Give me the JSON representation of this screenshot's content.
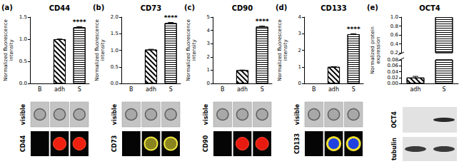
{
  "chart_data": [
    {
      "type": "bar",
      "panel": "(a)",
      "title": "CD44",
      "ylabel": "Normalized fluorescence intensity",
      "categories": [
        "B",
        "adh",
        "S"
      ],
      "values": [
        null,
        1.0,
        1.27
      ],
      "errors": [
        null,
        0.005,
        0.015
      ],
      "color": "#000000",
      "ylim": [
        0,
        1.5
      ],
      "yticks": [
        {
          "value": 0,
          "label": "0.0"
        },
        0.5,
        {
          "value": 1,
          "label": "1.0"
        },
        1.5
      ],
      "grid": false,
      "annotations": [
        {
          "category": "S",
          "text": "****"
        }
      ],
      "image_rows": [
        "visible",
        "CD44"
      ]
    },
    {
      "type": "bar",
      "panel": "(b)",
      "title": "CD73",
      "ylabel": "Normalized fluorescence intensity",
      "categories": [
        "B",
        "adh",
        "S"
      ],
      "values": [
        null,
        1.02,
        1.82
      ],
      "errors": [
        null,
        0.01,
        0.02
      ],
      "color": "#000000",
      "ylim": [
        0,
        2.0
      ],
      "yticks": [
        {
          "value": 0,
          "label": "0.0"
        },
        0.5,
        {
          "value": 1,
          "label": "1.0"
        },
        1.5,
        {
          "value": 2,
          "label": "2.0"
        }
      ],
      "grid": false,
      "annotations": [
        {
          "category": "S",
          "text": "****"
        }
      ],
      "image_rows": [
        "visible",
        "CD73"
      ]
    },
    {
      "type": "bar",
      "panel": "(c)",
      "title": "CD90",
      "ylabel": "Normalized fluorescence intensity",
      "categories": [
        "B",
        "adh",
        "S"
      ],
      "values": [
        null,
        1.0,
        4.28
      ],
      "errors": [
        null,
        0.01,
        0.04
      ],
      "color": "#000000",
      "ylim": [
        0,
        5
      ],
      "yticks": [
        0,
        1,
        2,
        3,
        4,
        5
      ],
      "grid": false,
      "annotations": [
        {
          "category": "S",
          "text": "****"
        }
      ],
      "image_rows": [
        "visible",
        "CD90"
      ]
    },
    {
      "type": "bar",
      "panel": "(d)",
      "title": "CD133",
      "ylabel": "Normalized fluorescence intensity",
      "categories": [
        "B",
        "adh",
        "S"
      ],
      "values": [
        null,
        1.0,
        2.97
      ],
      "errors": [
        null,
        0.01,
        0.03
      ],
      "color": "#000000",
      "ylim": [
        0,
        4
      ],
      "yticks": [
        0,
        1,
        2,
        3,
        4
      ],
      "grid": false,
      "annotations": [
        {
          "category": "S",
          "text": "****"
        }
      ],
      "image_rows": [
        "visible",
        "CD133"
      ]
    },
    {
      "type": "bar",
      "panel": "(e)",
      "title": "OCT4",
      "ylabel": "Normalized protein expression",
      "categories": [
        "adh",
        "S"
      ],
      "values": [
        0.02,
        1.0
      ],
      "errors": [
        0.004,
        0
      ],
      "color": "#000000",
      "ylim": [
        0,
        1.0
      ],
      "y_break": [
        0.08,
        0.2
      ],
      "yticks": [
        {
          "value": 0,
          "label": "0.00"
        },
        {
          "value": 0.02,
          "label": "0.02"
        },
        {
          "value": 0.04,
          "label": "0.04"
        },
        {
          "value": 0.06,
          "label": "0.06"
        },
        {
          "value": 0.08,
          "label": "0.08"
        },
        0.2,
        0.4,
        0.6,
        0.8,
        {
          "value": 1.0,
          "label": "1.0"
        }
      ],
      "grid": false,
      "blot_labels": [
        "OCT4",
        "tubulin"
      ]
    }
  ]
}
